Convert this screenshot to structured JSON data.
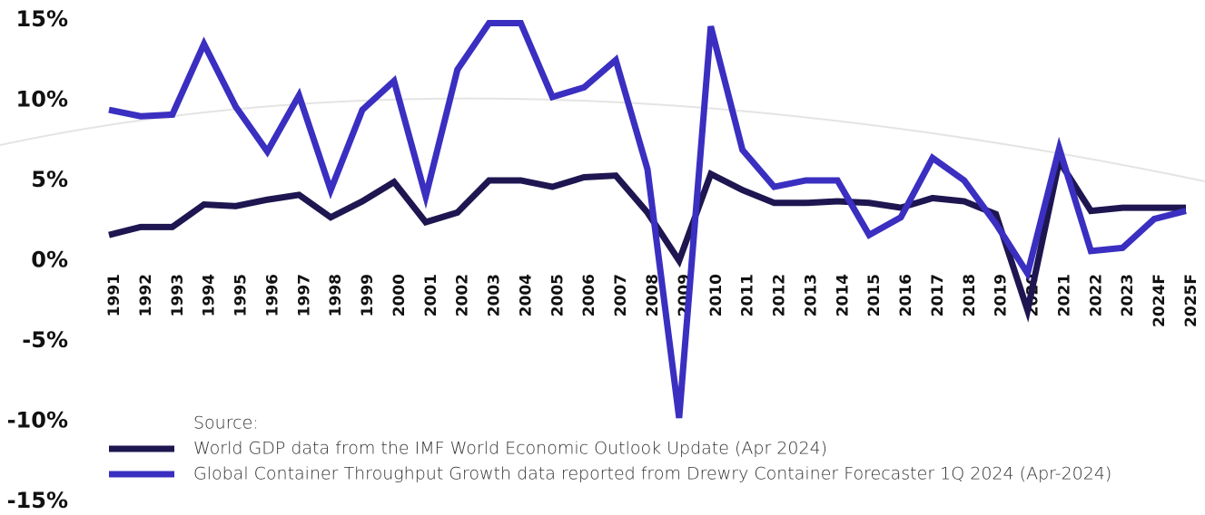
{
  "chart_data": {
    "type": "line",
    "categories": [
      "1991",
      "1992",
      "1993",
      "1994",
      "1995",
      "1996",
      "1997",
      "1998",
      "1999",
      "2000",
      "2001",
      "2002",
      "2003",
      "2004",
      "2005",
      "2006",
      "2007",
      "2008",
      "2009",
      "2010",
      "2011",
      "2012",
      "2013",
      "2014",
      "2015",
      "2016",
      "2017",
      "2018",
      "2019",
      "2020",
      "2021",
      "2022",
      "2023",
      "2024F",
      "2025F"
    ],
    "series": [
      {
        "name": "World GDP data from the IMF World Economic Outlook Update (Apr 2024)",
        "color": "#1e1650",
        "values": [
          1.6,
          2.1,
          2.1,
          3.5,
          3.4,
          3.8,
          4.1,
          2.7,
          3.7,
          4.9,
          2.4,
          3.0,
          5.0,
          5.0,
          4.6,
          5.2,
          5.3,
          3.0,
          0.0,
          5.4,
          4.4,
          3.6,
          3.6,
          3.7,
          3.6,
          3.3,
          3.9,
          3.7,
          2.9,
          -3.1,
          6.2,
          3.1,
          3.3,
          3.3,
          3.3
        ]
      },
      {
        "name": "Global Container Throughput Growth data reported from Drewry Container Forecaster 1Q 2024 (Apr-2024)",
        "color": "#3a2fc0",
        "values": [
          9.4,
          9.0,
          9.1,
          13.5,
          9.6,
          6.8,
          10.3,
          4.4,
          9.4,
          11.2,
          4.0,
          11.9,
          14.8,
          14.8,
          10.2,
          10.8,
          12.5,
          5.7,
          -9.8,
          14.6,
          6.9,
          4.6,
          5.0,
          5.0,
          1.6,
          2.7,
          6.4,
          5.0,
          2.3,
          -0.8,
          7.0,
          0.6,
          0.8,
          2.6,
          3.1
        ]
      }
    ],
    "legend_title": "Source:",
    "ylim": [
      -15,
      15
    ],
    "yticks": [
      {
        "value": -15,
        "label": "-15%"
      },
      {
        "value": -10,
        "label": "-10%"
      },
      {
        "value": -5,
        "label": "-5%"
      },
      {
        "value": 0,
        "label": "0%"
      },
      {
        "value": 5,
        "label": "5%"
      },
      {
        "value": 10,
        "label": "10%"
      },
      {
        "value": 15,
        "label": "15%"
      }
    ]
  }
}
